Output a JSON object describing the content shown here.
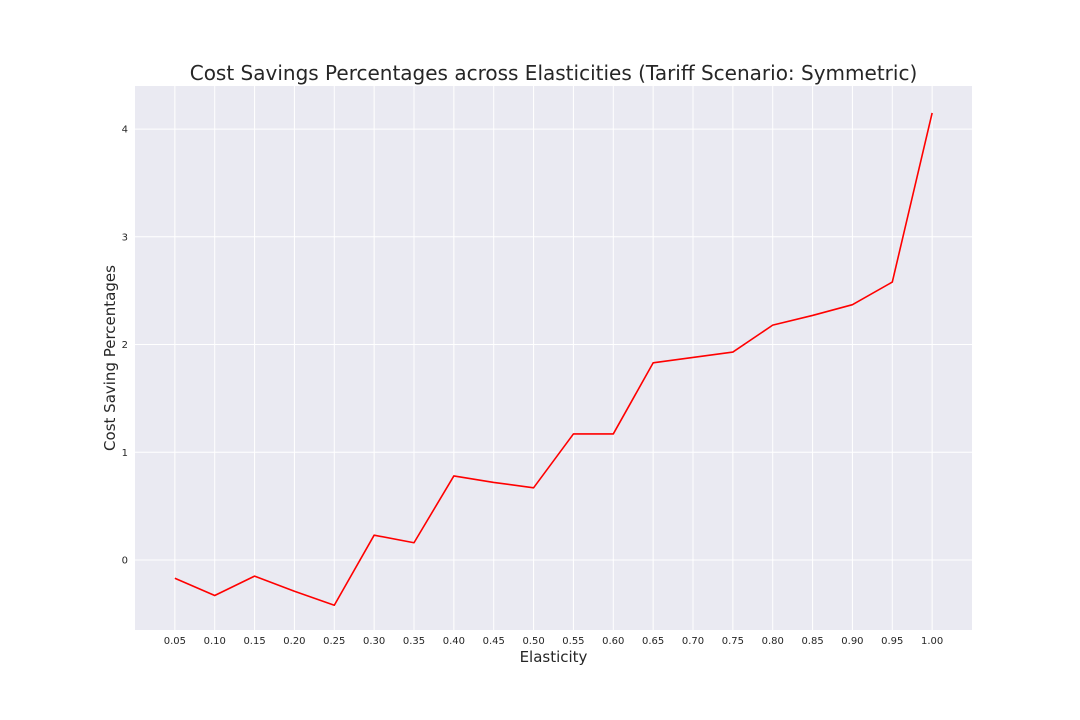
{
  "chart_data": {
    "type": "line",
    "title": "Cost Savings Percentages across Elasticities (Tariff Scenario: Symmetric)",
    "xlabel": "Elasticity",
    "ylabel": "Cost Saving Percentages",
    "x_tick_labels": [
      "0.05",
      "0.10",
      "0.15",
      "0.20",
      "0.25",
      "0.30",
      "0.35",
      "0.40",
      "0.45",
      "0.50",
      "0.55",
      "0.60",
      "0.65",
      "0.70",
      "0.75",
      "0.80",
      "0.85",
      "0.90",
      "0.95",
      "1.00"
    ],
    "y_tick_labels": [
      "0",
      "1",
      "2",
      "3",
      "4"
    ],
    "x": [
      0.05,
      0.1,
      0.15,
      0.2,
      0.25,
      0.3,
      0.35,
      0.4,
      0.45,
      0.5,
      0.55,
      0.6,
      0.65,
      0.7,
      0.75,
      0.8,
      0.85,
      0.9,
      0.95,
      1.0
    ],
    "series": [
      {
        "values": [
          -0.17,
          -0.33,
          -0.15,
          -0.29,
          -0.42,
          0.23,
          0.16,
          0.78,
          0.72,
          0.67,
          1.17,
          1.17,
          1.83,
          1.88,
          1.93,
          2.18,
          2.27,
          2.37,
          2.58,
          4.15
        ],
        "color": "#ff0000"
      }
    ],
    "xlim": [
      0.0,
      1.05
    ],
    "ylim": [
      -0.65,
      4.4
    ],
    "grid": true,
    "background": "#eaeaf2",
    "grid_color": "#ffffff"
  }
}
